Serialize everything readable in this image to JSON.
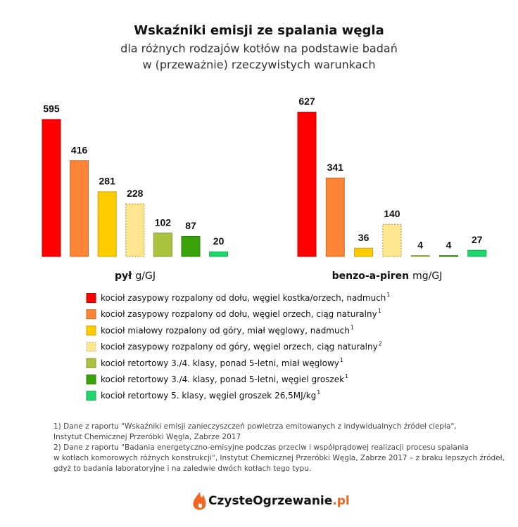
{
  "title": "Wskaźniki emisji ze spalania węgla",
  "subtitle_lines": [
    "dla różnych rodzajów kotłów na podstawie badań",
    "w (przeważnie) rzeczywistych warunkach"
  ],
  "chart_data": [
    {
      "type": "bar",
      "label": "pył",
      "unit": "g/GJ",
      "values": [
        595,
        416,
        281,
        228,
        102,
        87,
        20
      ],
      "colors": [
        "#ff0000",
        "#fd8535",
        "#ffcc00",
        "#ffe790",
        "#a9c23f",
        "#3aa30a",
        "#1fd66b"
      ],
      "border_styles": [
        "solid",
        "solid",
        "solid",
        "dotted",
        "solid",
        "solid",
        "solid"
      ],
      "ylim": [
        0,
        650
      ]
    },
    {
      "type": "bar",
      "label": "benzo-a-piren",
      "unit": "mg/GJ",
      "values": [
        627,
        341,
        36,
        140,
        4,
        4,
        27
      ],
      "colors": [
        "#ff0000",
        "#fd8535",
        "#ffcc00",
        "#ffe790",
        "#a9c23f",
        "#3aa30a",
        "#1fd66b"
      ],
      "border_styles": [
        "solid",
        "solid",
        "solid",
        "dotted",
        "solid",
        "solid",
        "solid"
      ],
      "ylim": [
        0,
        650
      ]
    }
  ],
  "legend": [
    {
      "label": "kocioł zasypowy rozpalony od dołu, węgiel kostka/orzech, nadmuch",
      "sup": "1",
      "color": "#ff0000"
    },
    {
      "label": "kocioł zasypowy rozpalony od dołu, węgiel orzech, ciąg naturalny",
      "sup": "1",
      "color": "#fd8535"
    },
    {
      "label": "kocioł miałowy rozpalony od góry, miał węglowy, nadmuch",
      "sup": "1",
      "color": "#ffcc00"
    },
    {
      "label": "kocioł zasypowy rozpalony od góry, węgiel orzech, ciąg naturalny",
      "sup": "2",
      "color": "#ffe790"
    },
    {
      "label": "kocioł retortowy 3./4. klasy, ponad 5-letni, miał węglowy",
      "sup": "1",
      "color": "#a9c23f"
    },
    {
      "label": "kocioł retortowy 3./4. klasy, ponad 5-letni, węgiel groszek",
      "sup": "1",
      "color": "#3aa30a"
    },
    {
      "label": "kocioł retortowy 5. klasy, węgiel groszek 26,5MJ/kg",
      "sup": "1",
      "color": "#1fd66b"
    }
  ],
  "footnotes": [
    "1) Dane z raportu \"Wskaźniki emisji zanieczyszczeń powietrza emitowanych z indywidualnych źródeł ciepła\",",
    " Instytut Chemicznej Przeróbki Węgla, Zabrze 2017",
    "2) Dane z raportu \"Badania energetyczno-emisyjne podczas przeciw i współprądowej realizacji procesu spalania",
    "w kotłach komorowych różnych konstrukcji\", Instytut Chemicznej Przeróbki Węgla, Zabrze 2017 – z braku lepszych źródeł,",
    "gdyż to badania laboratoryjne i na zaledwie dwóch kotłach tego typu."
  ],
  "logo": {
    "name": "CzysteOgrzewanie",
    "domain": ".pl"
  }
}
